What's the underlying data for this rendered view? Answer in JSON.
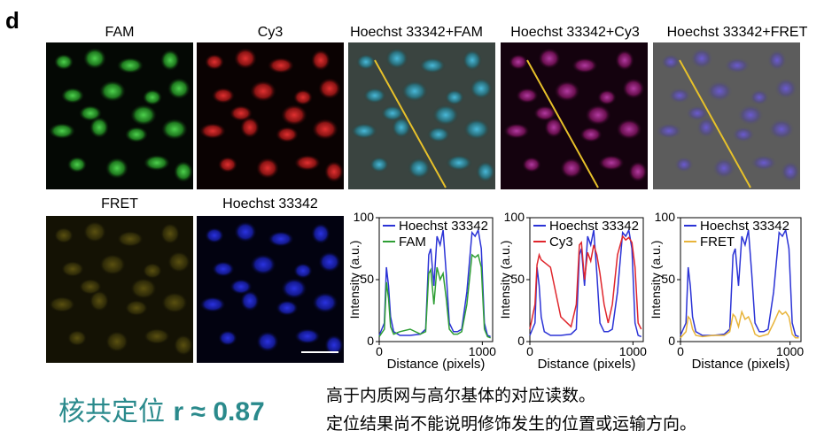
{
  "panel_letter": "d",
  "titles": {
    "fam": "FAM",
    "cy3": "Cy3",
    "hoechst_fam": "Hoechst 33342+FAM",
    "hoechst_cy3": "Hoechst 33342+Cy3",
    "hoechst_fret": "Hoechst 33342+FRET",
    "fret": "FRET",
    "hoechst": "Hoechst 33342"
  },
  "colors": {
    "hoechst": "#2b33d6",
    "fam": "#2e9e34",
    "cy3": "#e0262c",
    "fret": "#e8b43a",
    "line_profile": "#e7c12a",
    "caption": "#2a8a8c"
  },
  "caption": {
    "main_text": "核共定位 ",
    "main_bold": "r ≈ 0.87",
    "note_line1": "高于内质网与高尔基体的对应读数。",
    "note_line2": "定位结果尚不能说明修饰发生的位置或运输方向。"
  },
  "chart_data": [
    {
      "type": "line",
      "xlabel": "Distance (pixels)",
      "ylabel": "Intensity (a.u.)",
      "xlim": [
        0,
        1100
      ],
      "ylim": [
        0,
        100
      ],
      "xticks": [
        "0",
        "1000"
      ],
      "yticks": [
        "0",
        "50",
        "100"
      ],
      "legend_position": "top",
      "x": [
        0,
        50,
        70,
        90,
        110,
        140,
        200,
        300,
        400,
        450,
        480,
        500,
        530,
        560,
        590,
        620,
        650,
        680,
        720,
        760,
        800,
        850,
        900,
        930,
        960,
        990,
        1020,
        1050,
        1080
      ],
      "series": [
        {
          "name": "Hoechst 33342",
          "values": [
            5,
            15,
            60,
            45,
            20,
            8,
            5,
            5,
            6,
            10,
            70,
            75,
            45,
            85,
            78,
            90,
            55,
            15,
            8,
            8,
            10,
            40,
            88,
            85,
            90,
            75,
            15,
            5,
            4
          ]
        },
        {
          "name": "FAM",
          "values": [
            4,
            10,
            48,
            35,
            12,
            6,
            8,
            10,
            6,
            8,
            55,
            58,
            30,
            60,
            50,
            55,
            35,
            10,
            6,
            6,
            8,
            30,
            70,
            68,
            70,
            60,
            10,
            4,
            3
          ]
        }
      ]
    },
    {
      "type": "line",
      "xlabel": "Distance (pixels)",
      "ylabel": "Intensity (a.u.)",
      "xlim": [
        0,
        1100
      ],
      "ylim": [
        0,
        100
      ],
      "xticks": [
        "0",
        "1000"
      ],
      "yticks": [
        "0",
        "50",
        "100"
      ],
      "legend_position": "top",
      "x": [
        0,
        50,
        70,
        90,
        110,
        140,
        200,
        300,
        400,
        450,
        480,
        500,
        530,
        560,
        590,
        620,
        650,
        680,
        720,
        760,
        800,
        850,
        900,
        930,
        960,
        990,
        1020,
        1050,
        1080
      ],
      "series": [
        {
          "name": "Hoechst 33342",
          "values": [
            5,
            15,
            60,
            45,
            20,
            8,
            5,
            5,
            6,
            10,
            70,
            75,
            45,
            85,
            78,
            90,
            55,
            15,
            8,
            8,
            10,
            40,
            88,
            85,
            90,
            75,
            15,
            5,
            4
          ]
        },
        {
          "name": "Cy3",
          "values": [
            10,
            30,
            62,
            70,
            66,
            64,
            60,
            20,
            12,
            30,
            78,
            80,
            50,
            72,
            65,
            78,
            70,
            55,
            30,
            15,
            30,
            70,
            85,
            82,
            84,
            80,
            60,
            15,
            10
          ]
        }
      ]
    },
    {
      "type": "line",
      "xlabel": "Distance (pixels)",
      "ylabel": "Intensity (a.u.)",
      "xlim": [
        0,
        1100
      ],
      "ylim": [
        0,
        100
      ],
      "xticks": [
        "0",
        "1000"
      ],
      "yticks": [
        "0",
        "50",
        "100"
      ],
      "legend_position": "top",
      "x": [
        0,
        50,
        70,
        90,
        110,
        140,
        200,
        300,
        400,
        450,
        480,
        500,
        530,
        560,
        590,
        620,
        650,
        680,
        720,
        760,
        800,
        850,
        900,
        930,
        960,
        990,
        1020,
        1050,
        1080
      ],
      "series": [
        {
          "name": "Hoechst 33342",
          "values": [
            5,
            15,
            60,
            45,
            20,
            8,
            5,
            5,
            6,
            10,
            70,
            75,
            45,
            85,
            78,
            90,
            55,
            15,
            8,
            8,
            10,
            40,
            88,
            85,
            90,
            75,
            15,
            5,
            4
          ]
        },
        {
          "name": "FRET",
          "values": [
            3,
            8,
            20,
            18,
            10,
            5,
            4,
            5,
            5,
            8,
            22,
            20,
            12,
            24,
            18,
            20,
            14,
            6,
            4,
            5,
            6,
            15,
            25,
            22,
            24,
            20,
            6,
            3,
            3
          ]
        }
      ]
    }
  ]
}
